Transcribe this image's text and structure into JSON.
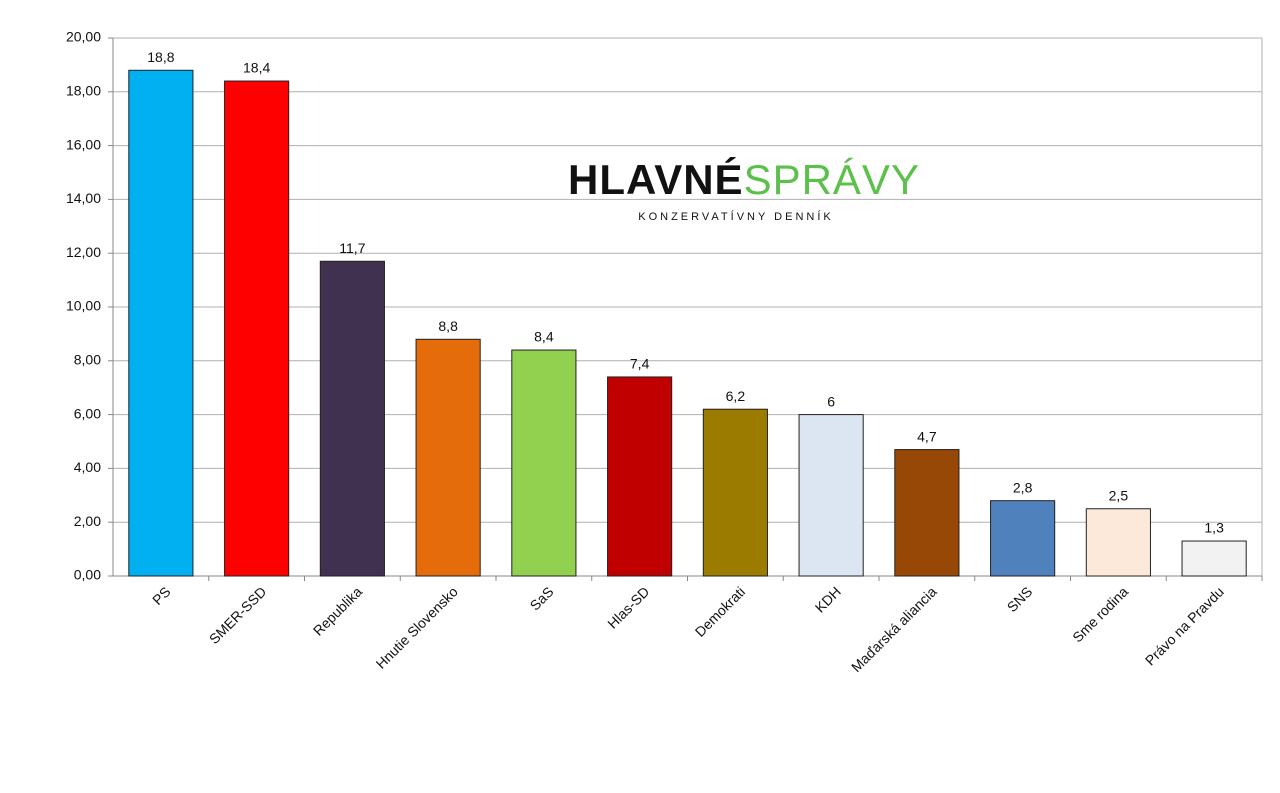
{
  "chart_data": {
    "type": "bar",
    "categories": [
      "PS",
      "SMER-SSD",
      "Republika",
      "Hnutie Slovensko",
      "SaS",
      "Hlas-SD",
      "Demokrati",
      "KDH",
      "Maďarská aliancia",
      "SNS",
      "Sme rodina",
      "Právo na Pravdu"
    ],
    "values": [
      18.8,
      18.4,
      11.7,
      8.8,
      8.4,
      7.4,
      6.2,
      6,
      4.7,
      2.8,
      2.5,
      1.3
    ],
    "value_labels": [
      "18,8",
      "18,4",
      "11,7",
      "8,8",
      "8,4",
      "7,4",
      "6,2",
      "6",
      "4,7",
      "2,8",
      "2,5",
      "1,3"
    ],
    "colors": [
      "#00b0f0",
      "#ff0000",
      "#403151",
      "#e46c0a",
      "#92d050",
      "#c00000",
      "#9c7c00",
      "#dce6f2",
      "#974706",
      "#4f81bd",
      "#fde9d9",
      "#f2f2f2"
    ],
    "ylim": [
      0,
      20
    ],
    "yticks": [
      {
        "value": 0,
        "label": "0,00"
      },
      {
        "value": 2,
        "label": "2,00"
      },
      {
        "value": 4,
        "label": "4,00"
      },
      {
        "value": 6,
        "label": "6,00"
      },
      {
        "value": 8,
        "label": "8,00"
      },
      {
        "value": 10,
        "label": "10,00"
      },
      {
        "value": 12,
        "label": "12,00"
      },
      {
        "value": 14,
        "label": "14,00"
      },
      {
        "value": 16,
        "label": "16,00"
      },
      {
        "value": 18,
        "label": "18,00"
      },
      {
        "value": 20,
        "label": "20,00"
      }
    ],
    "grid": true
  },
  "logo": {
    "word1": "HLAVNÉ",
    "word2": "SPRÁVY",
    "tagline": "KONZERVATÍVNY DENNÍK"
  }
}
